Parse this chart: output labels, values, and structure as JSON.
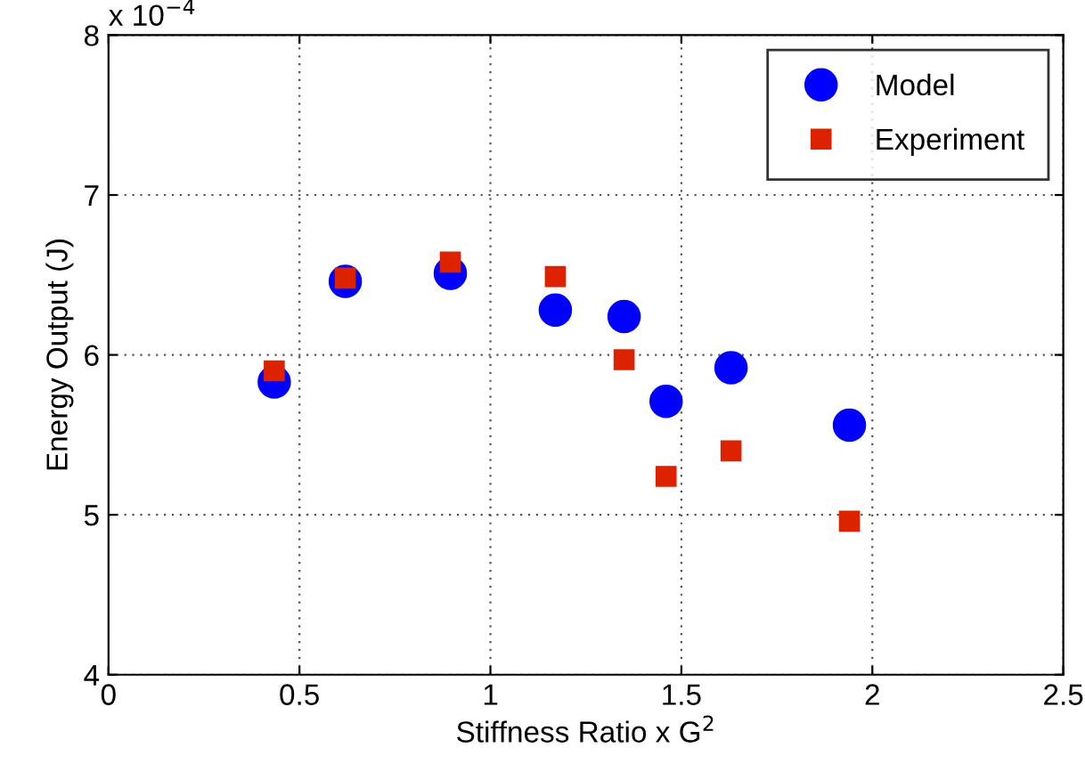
{
  "chart_data": {
    "type": "scatter",
    "xlabel": "Stiffness Ratio x G$^{2}$",
    "ylabel": "Energy Output (J)",
    "annotations": [
      "x 10$^{−4}$"
    ],
    "x": [
      0.434,
      0.62,
      0.895,
      1.17,
      1.35,
      1.46,
      1.63,
      1.94
    ],
    "series": [
      {
        "name": "Model",
        "color": "#0000ff",
        "marker": "circle",
        "values": [
          5.83,
          6.46,
          6.51,
          6.28,
          6.24,
          5.71,
          5.92,
          5.56
        ]
      },
      {
        "name": "Experiment",
        "color": "#dd2200",
        "marker": "square",
        "values": [
          5.9,
          6.48,
          6.58,
          6.49,
          5.97,
          5.24,
          5.4,
          4.96
        ]
      }
    ],
    "xlim": [
      0,
      2.5
    ],
    "ylim": [
      4,
      8
    ],
    "xticks": [
      0,
      0.5,
      1,
      1.5,
      2,
      2.5
    ],
    "yticks": [
      4,
      5,
      6,
      7,
      8
    ],
    "grid": true,
    "legend": "top right"
  }
}
